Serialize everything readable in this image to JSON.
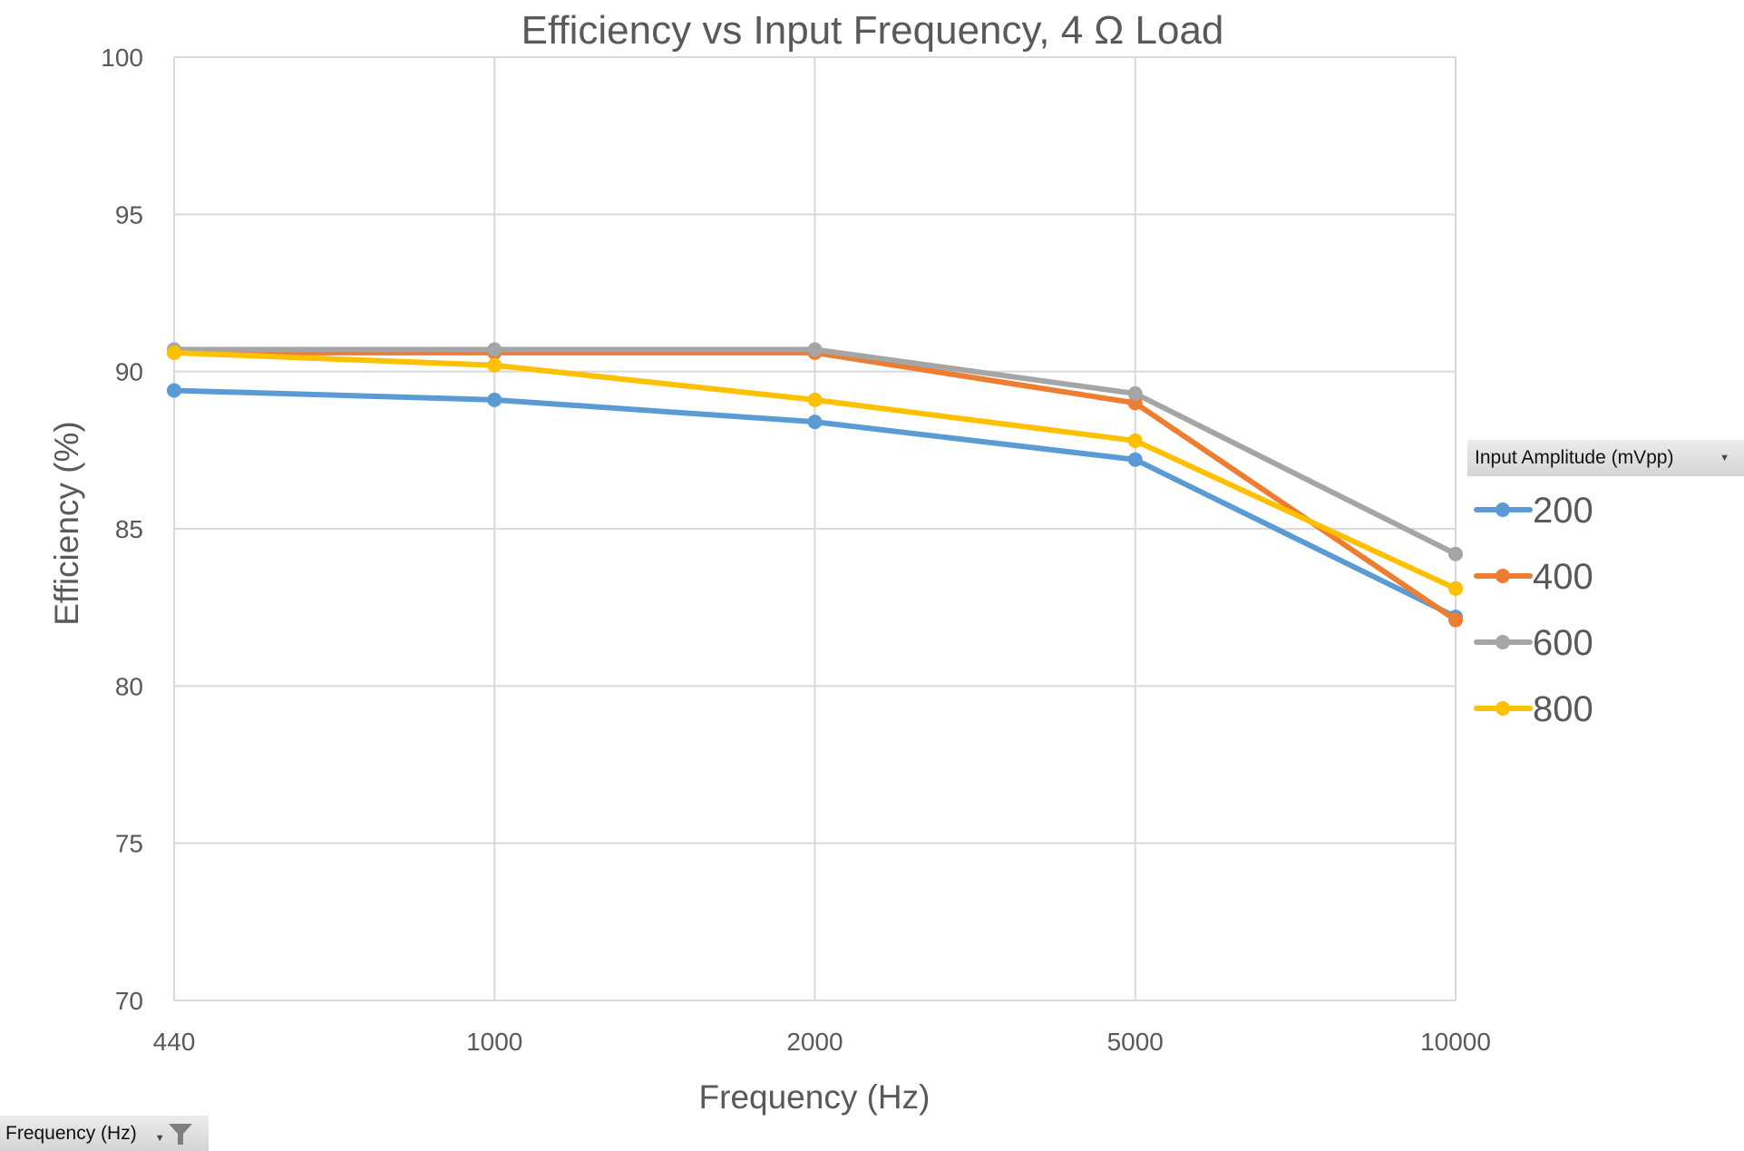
{
  "chart_data": {
    "type": "line",
    "title": "Efficiency vs Input Frequency, 4 Ω Load",
    "xlabel": "Frequency (Hz)",
    "ylabel": "Efficiency (%)",
    "categories": [
      "440",
      "1000",
      "2000",
      "5000",
      "10000"
    ],
    "ylim": [
      70,
      100
    ],
    "yticks": [
      "70",
      "75",
      "80",
      "85",
      "90",
      "95",
      "100"
    ],
    "ytick_values": [
      70,
      75,
      80,
      85,
      90,
      95,
      100
    ],
    "grid": true,
    "legend_title": "Input Amplitude (mVpp)",
    "legend_position": "right",
    "series": [
      {
        "name": "200",
        "color": "#5b9bd5",
        "values": [
          89.4,
          89.1,
          88.4,
          87.2,
          82.2
        ]
      },
      {
        "name": "400",
        "color": "#ed7d31",
        "values": [
          90.6,
          90.6,
          90.6,
          89.0,
          82.1
        ]
      },
      {
        "name": "600",
        "color": "#a5a5a5",
        "values": [
          90.7,
          90.7,
          90.7,
          89.3,
          84.2
        ]
      },
      {
        "name": "800",
        "color": "#ffc000",
        "values": [
          90.6,
          90.2,
          89.1,
          87.8,
          83.1
        ]
      }
    ]
  },
  "pivot_fields": {
    "legend_field": "Input Amplitude (mVpp)",
    "axis_field": "Frequency (Hz)"
  },
  "colors": {
    "text": "#595959",
    "grid": "#d9d9d9"
  }
}
